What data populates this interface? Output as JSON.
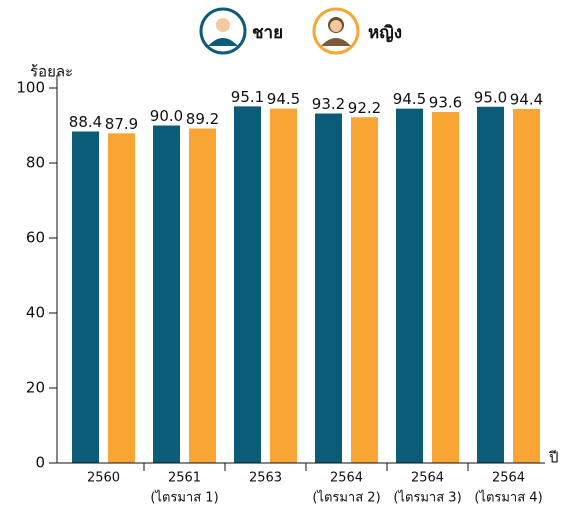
{
  "chart_data": {
    "type": "bar",
    "y_label": "ร้อยละ",
    "x_label": "ปี",
    "categories": [
      [
        "2560"
      ],
      [
        "2561",
        "(ไตรมาส 1)"
      ],
      [
        "2563"
      ],
      [
        "2564",
        "(ไตรมาส 2)"
      ],
      [
        "2564",
        "(ไตรมาส 3)"
      ],
      [
        "2564",
        "(ไตรมาส 4)"
      ]
    ],
    "series": [
      {
        "name": "ชาย",
        "color": "#0b5c78",
        "values": [
          88.4,
          90,
          95.1,
          93.2,
          94.5,
          95
        ],
        "value_labels": [
          "88.4",
          "90.0",
          "95.1",
          "93.2",
          "94.5",
          "95.0"
        ]
      },
      {
        "name": "หญิง",
        "color": "#f9a533",
        "values": [
          87.9,
          89.2,
          94.5,
          92.2,
          93.6,
          94.4
        ],
        "value_labels": [
          "87.9",
          "89.2",
          "94.5",
          "92.2",
          "93.6",
          "94.4"
        ]
      }
    ],
    "ylim": [
      0,
      100
    ],
    "yticks": [
      0,
      20,
      40,
      60,
      80,
      100
    ]
  }
}
